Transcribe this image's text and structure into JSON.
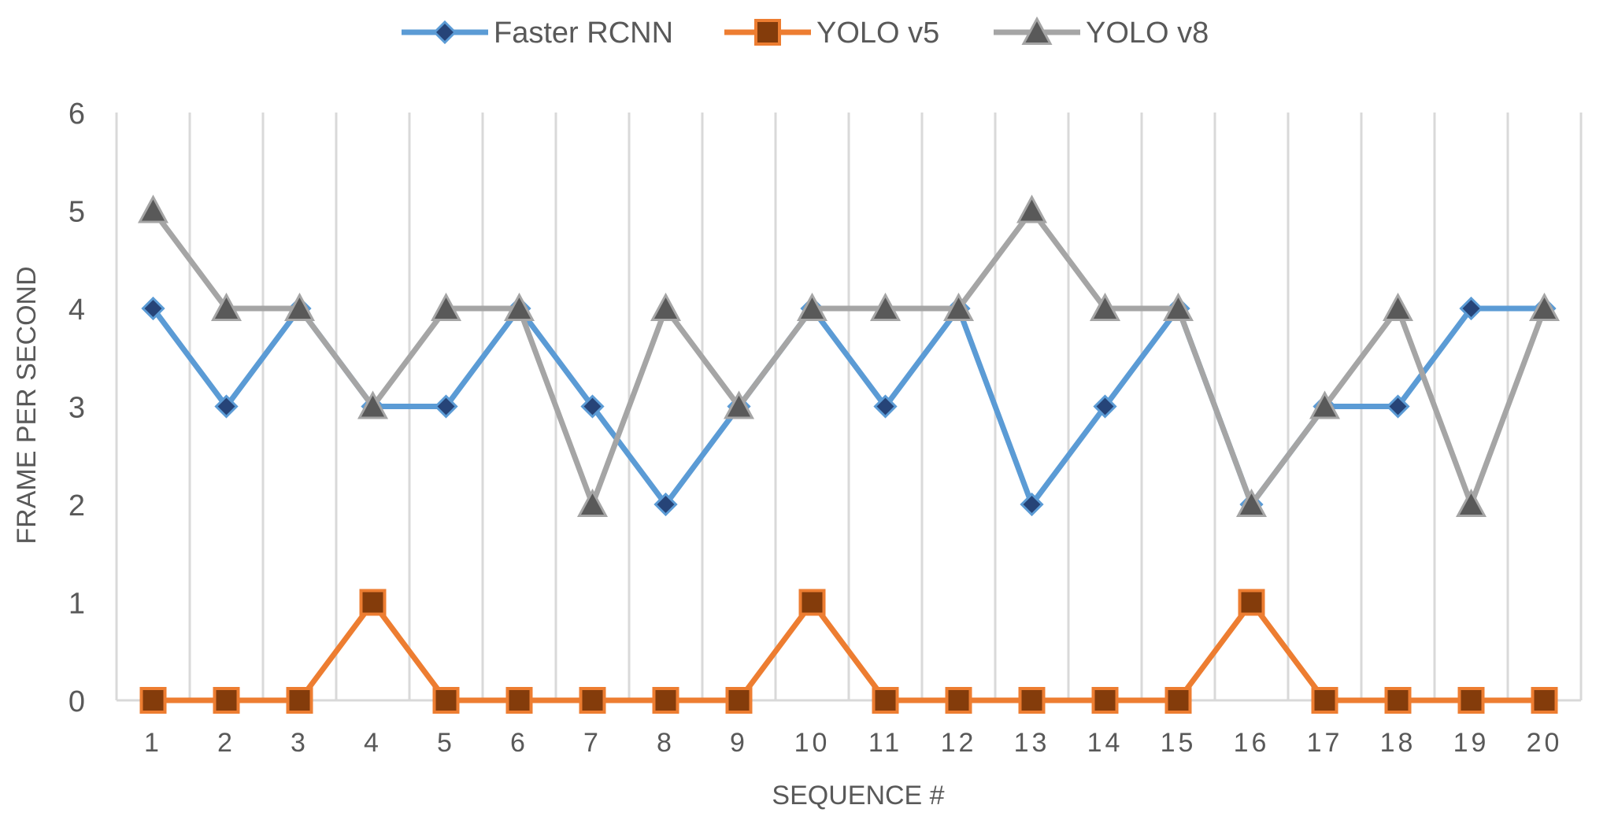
{
  "chart_data": {
    "type": "line",
    "title": "",
    "xlabel": "SEQUENCE #",
    "ylabel": "FRAME PER SECOND",
    "categories": [
      "1",
      "2",
      "3",
      "4",
      "5",
      "6",
      "7",
      "8",
      "9",
      "10",
      "11",
      "12",
      "13",
      "14",
      "15",
      "16",
      "17",
      "18",
      "19",
      "20"
    ],
    "ylim": [
      0,
      6
    ],
    "yticks": [
      "0",
      "1",
      "2",
      "3",
      "4",
      "5",
      "6"
    ],
    "grid": "vertical",
    "legend_position": "top-center",
    "series": [
      {
        "name": "Faster RCNN",
        "color": "#5b9bd5",
        "marker": "diamond",
        "values": [
          4,
          3,
          4,
          3,
          3,
          4,
          3,
          2,
          3,
          4,
          3,
          4,
          2,
          3,
          4,
          2,
          3,
          3,
          4,
          4
        ]
      },
      {
        "name": "YOLO v5",
        "color": "#ed7d31",
        "marker": "square",
        "values": [
          0,
          0,
          0,
          1,
          0,
          0,
          0,
          0,
          0,
          1,
          0,
          0,
          0,
          0,
          0,
          1,
          0,
          0,
          0,
          0
        ]
      },
      {
        "name": "YOLO v8",
        "color": "#a5a5a5",
        "marker": "triangle",
        "values": [
          5,
          4,
          4,
          3,
          4,
          4,
          2,
          4,
          3,
          4,
          4,
          4,
          5,
          4,
          4,
          2,
          3,
          4,
          2,
          4
        ]
      }
    ]
  }
}
